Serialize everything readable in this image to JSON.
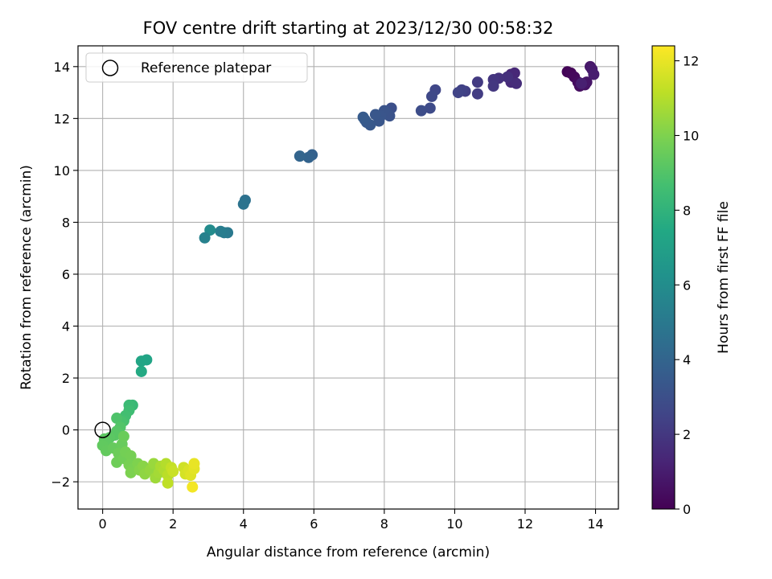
{
  "chart_data": {
    "type": "scatter",
    "title": "FOV centre drift starting at 2023/12/30 00:58:32",
    "xlabel": "Angular distance from reference (arcmin)",
    "ylabel": "Rotation from reference (arcmin)",
    "xlim": [
      -0.7,
      14.65
    ],
    "ylim": [
      -3.05,
      14.8
    ],
    "xticks": [
      0,
      2,
      4,
      6,
      8,
      10,
      12,
      14
    ],
    "yticks": [
      -2,
      0,
      2,
      4,
      6,
      8,
      10,
      12,
      14
    ],
    "grid": true,
    "legend": {
      "position": "top-left",
      "entries": [
        {
          "label": "Reference platepar",
          "marker": "open-circle"
        }
      ]
    },
    "reference_point": {
      "x": 0,
      "y": 0
    },
    "colorbar": {
      "label": "Hours from first FF file",
      "min": 0,
      "max": 12.4,
      "ticks": [
        0,
        2,
        4,
        6,
        8,
        10,
        12
      ],
      "colormap": "viridis"
    },
    "points": [
      {
        "x": 13.2,
        "y": 13.8,
        "c": 0.1
      },
      {
        "x": 13.3,
        "y": 13.75,
        "c": 0.2
      },
      {
        "x": 13.4,
        "y": 13.6,
        "c": 0.3
      },
      {
        "x": 13.5,
        "y": 13.4,
        "c": 0.4
      },
      {
        "x": 13.55,
        "y": 13.25,
        "c": 0.5
      },
      {
        "x": 13.7,
        "y": 13.3,
        "c": 0.6
      },
      {
        "x": 13.75,
        "y": 13.4,
        "c": 0.7
      },
      {
        "x": 13.85,
        "y": 14.0,
        "c": 0.8
      },
      {
        "x": 13.9,
        "y": 13.9,
        "c": 0.9
      },
      {
        "x": 13.95,
        "y": 13.7,
        "c": 1.0
      },
      {
        "x": 13.6,
        "y": 13.35,
        "c": 1.1
      },
      {
        "x": 11.6,
        "y": 13.7,
        "c": 1.3
      },
      {
        "x": 11.7,
        "y": 13.75,
        "c": 1.4
      },
      {
        "x": 11.6,
        "y": 13.4,
        "c": 1.5
      },
      {
        "x": 11.75,
        "y": 13.35,
        "c": 1.6
      },
      {
        "x": 11.5,
        "y": 13.6,
        "c": 1.7
      },
      {
        "x": 11.25,
        "y": 13.55,
        "c": 1.8
      },
      {
        "x": 11.1,
        "y": 13.5,
        "c": 1.9
      },
      {
        "x": 11.1,
        "y": 13.25,
        "c": 2.0
      },
      {
        "x": 10.65,
        "y": 13.4,
        "c": 2.1
      },
      {
        "x": 10.65,
        "y": 12.95,
        "c": 2.2
      },
      {
        "x": 10.3,
        "y": 13.05,
        "c": 2.3
      },
      {
        "x": 10.2,
        "y": 13.1,
        "c": 2.4
      },
      {
        "x": 10.1,
        "y": 13.0,
        "c": 2.5
      },
      {
        "x": 9.45,
        "y": 13.1,
        "c": 2.6
      },
      {
        "x": 9.35,
        "y": 12.85,
        "c": 2.7
      },
      {
        "x": 9.3,
        "y": 12.4,
        "c": 2.8
      },
      {
        "x": 9.05,
        "y": 12.3,
        "c": 2.9
      },
      {
        "x": 8.2,
        "y": 12.4,
        "c": 3.0
      },
      {
        "x": 8.1,
        "y": 12.2,
        "c": 3.1
      },
      {
        "x": 8.15,
        "y": 12.1,
        "c": 3.15
      },
      {
        "x": 8.0,
        "y": 12.3,
        "c": 3.2
      },
      {
        "x": 7.9,
        "y": 12.1,
        "c": 3.25
      },
      {
        "x": 7.85,
        "y": 11.9,
        "c": 3.3
      },
      {
        "x": 7.75,
        "y": 12.15,
        "c": 3.35
      },
      {
        "x": 7.6,
        "y": 11.75,
        "c": 3.4
      },
      {
        "x": 7.5,
        "y": 11.85,
        "c": 3.45
      },
      {
        "x": 7.45,
        "y": 11.95,
        "c": 3.5
      },
      {
        "x": 7.4,
        "y": 12.05,
        "c": 3.55
      },
      {
        "x": 5.95,
        "y": 10.6,
        "c": 3.8
      },
      {
        "x": 5.85,
        "y": 10.5,
        "c": 3.9
      },
      {
        "x": 5.6,
        "y": 10.55,
        "c": 4.0
      },
      {
        "x": 4.05,
        "y": 8.85,
        "c": 4.6
      },
      {
        "x": 4.0,
        "y": 8.7,
        "c": 4.7
      },
      {
        "x": 3.55,
        "y": 7.6,
        "c": 5.0
      },
      {
        "x": 3.45,
        "y": 7.6,
        "c": 5.1
      },
      {
        "x": 3.35,
        "y": 7.65,
        "c": 5.2
      },
      {
        "x": 3.05,
        "y": 7.7,
        "c": 5.9
      },
      {
        "x": 2.9,
        "y": 7.4,
        "c": 5.4
      },
      {
        "x": 1.25,
        "y": 2.7,
        "c": 7.2
      },
      {
        "x": 1.1,
        "y": 2.65,
        "c": 7.3
      },
      {
        "x": 1.1,
        "y": 2.25,
        "c": 7.5
      },
      {
        "x": 0.85,
        "y": 0.95,
        "c": 8.3
      },
      {
        "x": 0.75,
        "y": 0.95,
        "c": 8.4
      },
      {
        "x": 0.75,
        "y": 0.75,
        "c": 8.5
      },
      {
        "x": 0.65,
        "y": 0.55,
        "c": 8.6
      },
      {
        "x": 0.6,
        "y": 0.35,
        "c": 8.7
      },
      {
        "x": 0.55,
        "y": 0.3,
        "c": 8.8
      },
      {
        "x": 0.4,
        "y": 0.45,
        "c": 8.9
      },
      {
        "x": 0.5,
        "y": 0.1,
        "c": 9.0
      },
      {
        "x": 0.4,
        "y": -0.05,
        "c": 9.1
      },
      {
        "x": 0.35,
        "y": -0.2,
        "c": 9.15
      },
      {
        "x": 0.2,
        "y": -0.3,
        "c": 9.2
      },
      {
        "x": 0.05,
        "y": -0.35,
        "c": 9.25
      },
      {
        "x": 0.1,
        "y": -0.5,
        "c": 9.3
      },
      {
        "x": 0.0,
        "y": -0.6,
        "c": 9.35
      },
      {
        "x": 0.1,
        "y": -0.8,
        "c": 9.4
      },
      {
        "x": 0.3,
        "y": -0.7,
        "c": 9.45
      },
      {
        "x": 0.55,
        "y": -0.55,
        "c": 9.5
      },
      {
        "x": 0.6,
        "y": -0.25,
        "c": 9.55
      },
      {
        "x": 0.45,
        "y": -0.9,
        "c": 9.6
      },
      {
        "x": 0.4,
        "y": -1.25,
        "c": 9.65
      },
      {
        "x": 0.6,
        "y": -1.1,
        "c": 9.7
      },
      {
        "x": 0.65,
        "y": -0.85,
        "c": 9.75
      },
      {
        "x": 0.8,
        "y": -1.0,
        "c": 9.8
      },
      {
        "x": 0.75,
        "y": -1.35,
        "c": 9.85
      },
      {
        "x": 0.85,
        "y": -1.5,
        "c": 9.9
      },
      {
        "x": 0.8,
        "y": -1.65,
        "c": 9.95
      },
      {
        "x": 1.0,
        "y": -1.3,
        "c": 10.0
      },
      {
        "x": 1.05,
        "y": -1.55,
        "c": 10.1
      },
      {
        "x": 1.15,
        "y": -1.4,
        "c": 10.2
      },
      {
        "x": 1.2,
        "y": -1.7,
        "c": 10.3
      },
      {
        "x": 1.35,
        "y": -1.55,
        "c": 10.4
      },
      {
        "x": 1.45,
        "y": -1.3,
        "c": 10.5
      },
      {
        "x": 1.5,
        "y": -1.85,
        "c": 10.6
      },
      {
        "x": 1.6,
        "y": -1.65,
        "c": 10.7
      },
      {
        "x": 1.65,
        "y": -1.4,
        "c": 10.8
      },
      {
        "x": 1.75,
        "y": -1.55,
        "c": 10.9
      },
      {
        "x": 1.8,
        "y": -1.3,
        "c": 11.0
      },
      {
        "x": 1.85,
        "y": -1.75,
        "c": 11.1
      },
      {
        "x": 1.85,
        "y": -2.05,
        "c": 11.2
      },
      {
        "x": 1.95,
        "y": -1.45,
        "c": 11.3
      },
      {
        "x": 2.0,
        "y": -1.6,
        "c": 11.4
      },
      {
        "x": 2.3,
        "y": -1.45,
        "c": 11.5
      },
      {
        "x": 2.35,
        "y": -1.7,
        "c": 11.6
      },
      {
        "x": 2.45,
        "y": -1.55,
        "c": 11.7
      },
      {
        "x": 2.5,
        "y": -1.75,
        "c": 11.8
      },
      {
        "x": 2.6,
        "y": -1.5,
        "c": 11.9
      },
      {
        "x": 2.6,
        "y": -1.3,
        "c": 12.0
      },
      {
        "x": 2.55,
        "y": -2.2,
        "c": 12.2
      }
    ]
  }
}
